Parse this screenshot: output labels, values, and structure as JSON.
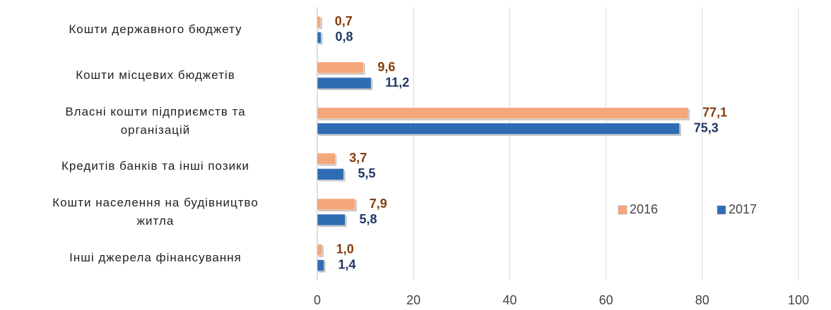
{
  "chart_data": {
    "type": "bar",
    "orientation": "horizontal",
    "categories": [
      "Кошти державного бюджету",
      "Кошти місцевих бюджетів",
      "Власні кошти підприємств та\nорганізацій",
      "Кредитів банків та інші позики",
      "Кошти населення на будівництво\nжитла",
      "Інші джерела фінансування"
    ],
    "series": [
      {
        "name": "2016",
        "color": "#f4a77a",
        "label_color": "#843c0c",
        "values": [
          0.7,
          9.6,
          77.1,
          3.7,
          7.9,
          1.0
        ],
        "value_labels": [
          "0,7",
          "9,6",
          "77,1",
          "3,7",
          "7,9",
          "1,0"
        ]
      },
      {
        "name": "2017",
        "color": "#2e6db4",
        "label_color": "#1f3864",
        "values": [
          0.8,
          11.2,
          75.3,
          5.5,
          5.8,
          1.4
        ],
        "value_labels": [
          "0,8",
          "11,2",
          "75,3",
          "5,5",
          "5,8",
          "1,4"
        ]
      }
    ],
    "xlim": [
      0,
      100
    ],
    "xticks": [
      0,
      20,
      40,
      60,
      80,
      100
    ],
    "grid": true,
    "legend": "right"
  }
}
